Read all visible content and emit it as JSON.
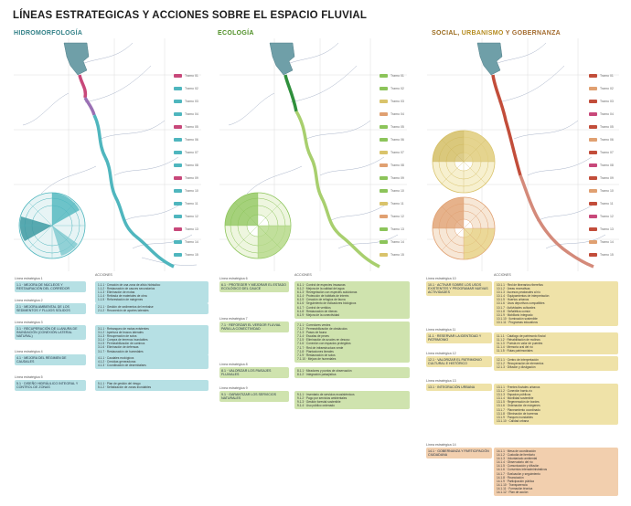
{
  "title": "LÍNEAS ESTRATEGICAS Y ACCIONES SOBRE EL ESPACIO FLUVIAL",
  "sections": {
    "hidro": "HIDROMORFOLOGÍA",
    "eco": "ECOLOGÍA",
    "soc_a": "SOCIAL,",
    "soc_b": "URBANISMO",
    "soc_c": "Y GOBERNANZA"
  },
  "acciones_label": "ACCIONES",
  "colors": {
    "hidro": "#4fb6be",
    "hidro_box": "#b6e0e4",
    "eco": "#8cc45a",
    "eco_box": "#cfe3ae",
    "soc": "#d9c36b",
    "soc_box": "#efe2a8",
    "soc_orange": "#e0a071",
    "soc_orange_box": "#f2cfae",
    "reservoir": "#6f9fa8",
    "pink": "#c8487a",
    "purple": "#9a70b4",
    "red": "#c24d3a",
    "river_thin": "#9aa7bf"
  },
  "tramos": [
    {
      "label": "Tramo 01"
    },
    {
      "label": "Tramo 02"
    },
    {
      "label": "Tramo 03"
    },
    {
      "label": "Tramo 04"
    },
    {
      "label": "Tramo 05"
    },
    {
      "label": "Tramo 06"
    },
    {
      "label": "Tramo 07"
    },
    {
      "label": "Tramo 08"
    },
    {
      "label": "Tramo 09"
    },
    {
      "label": "Tramo 10"
    },
    {
      "label": "Tramo 11"
    },
    {
      "label": "Tramo 12"
    },
    {
      "label": "Tramo 13"
    },
    {
      "label": "Tramo 14"
    },
    {
      "label": "Tramo 15"
    }
  ],
  "hidro_blocks": [
    {
      "head": "Línea estratégica 1",
      "line": "1.1 · MEJORA DE NÚCLEOS Y RESTAURACIÓN DEL CORREDOR",
      "actions": [
        "1.1.1 · Creación de una zona de alivio hidráulico",
        "1.1.2 · Restauración de cauces secundarios",
        "1.1.3 · Eliminación de motas",
        "1.1.4 · Retirada de materiales de obra",
        "1.1.5 · Reforestación de márgenes"
      ]
    },
    {
      "head": "Línea estratégica 2",
      "line": "2.1 · MEJORA AMBIENTAL DE LOS SEDIMENTOS Y FLUJOS SÓLIDOS",
      "actions": [
        "2.1.1 · Gestión de sedimentos del embalse",
        "2.1.2 · Reconexión de aportes laterales"
      ]
    },
    {
      "head": "Línea estratégica 3",
      "line": "3.1 · RECUPERACIÓN DE LLANURA DE INUNDACIÓN (CONEXIÓN LATERAL NATURAL)",
      "actions": [
        "3.1.1 · Retranqueo de motas existentes",
        "3.1.2 · Apertura de brazos laterales",
        "3.1.3 · Recuperación de sotos",
        "3.1.4 · Compra de terrenos inundables",
        "3.1.5 · Permeabilización de caminos",
        "3.1.6 · Eliminación de defensas",
        "3.1.7 · Restauración de humedales"
      ]
    },
    {
      "head": "Línea estratégica 4",
      "line": "4.1 · MEJORA DEL RÉGIMEN DE CAUDALES",
      "actions": [
        "4.1.1 · Caudales ecológicos",
        "4.1.2 · Crecidas generadoras",
        "4.1.3 · Coordinación de desembalses"
      ]
    },
    {
      "head": "Línea estratégica 5",
      "line": "5.1 · DISEÑO HIDRÁULICO INTEGRAL Y CONTROL DE ZONAS",
      "actions": [
        "5.1.1 · Plan de gestión del riesgo",
        "5.1.2 · Señalización de zonas inundables"
      ]
    }
  ],
  "eco_blocks": [
    {
      "head": "Línea estratégica 6",
      "line": "6.1 · PROTEGER Y MEJORAR EL ESTADO ECOLÓGICO DEL CAUCE",
      "actions": [
        "6.1.1 · Control de especies invasoras",
        "6.1.2 · Mejora de la calidad del agua",
        "6.1.3 · Revegetación con especies autóctonas",
        "6.1.4 · Protección de hábitats de interés",
        "6.1.5 · Creación de refugios de fauna",
        "6.1.6 · Seguimiento de indicadores biológicos",
        "6.1.7 · Control de vertidos",
        "6.1.8 · Restauración de riberas",
        "6.1.9 · Mejora de la conectividad"
      ]
    },
    {
      "head": "Línea estratégica 7",
      "line": "7.1 · REFORZAR EL VERDOR FLUVIAL PARA LA CONECTIVIDAD",
      "actions": [
        "7.1.1 · Corredores verdes",
        "7.1.2 · Permeabilización de obstáculos",
        "7.1.3 · Pasos de fauna",
        "7.1.4 · Escalas de peces",
        "7.1.5 · Eliminación de azudes en desuso",
        "7.1.6 · Conexión con espacios protegidos",
        "7.1.7 · Red de infraestructura verde",
        "7.1.8 · Plantaciones lineales",
        "7.1.9 · Restauración de sotos",
        "7.1.10 · Mejora de humedales"
      ]
    },
    {
      "head": "Línea estratégica 8",
      "line": "8.1 · VALORIZAR LOS PAISAJES FLUVIALES",
      "actions": [
        "8.1.1 · Miradores y puntos de observación",
        "8.1.2 · Integración paisajística"
      ]
    },
    {
      "head": "Línea estratégica 9",
      "line": "9.1 · GARANTIZAR LOS SERVICIOS NATURALES",
      "actions": [
        "9.1.1 · Inventario de servicios ecosistémicos",
        "9.1.2 · Pago por servicios ambientales",
        "9.1.3 · Gestión forestal sostenible",
        "9.1.4 · Uso público ordenado"
      ]
    }
  ],
  "soc_blocks": [
    {
      "head": "Línea estratégica 10",
      "line": "10.1 · ACTIVAR SOBRE LOS USOS EXISTENTES Y PROGRAMAR NUEVAS ACTIVIDADES",
      "actions": [
        "10.1.1 · Red de itinerarios ribereños",
        "10.1.2 · Áreas recreativas",
        "10.1.3 · Accesos peatonales al río",
        "10.1.4 · Equipamientos de interpretación",
        "10.1.5 · Huertos urbanos",
        "10.1.6 · Usos deportivos compatibles",
        "10.1.7 · Actividades culturales",
        "10.1.8 · Señalética común",
        "10.1.9 · Mobiliario integrado",
        "10.1.10 · Iluminación sostenible",
        "10.1.11 · Programas educativos"
      ]
    },
    {
      "head": "Línea estratégica 11",
      "line": "11.1 · RESERVAR LA IDENTIDAD Y PATRIMONIO",
      "actions": [
        "11.1.1 · Catálogo de patrimonio fluvial",
        "11.1.2 · Rehabilitación de molinos",
        "11.1.3 · Puesta en valor de puentes",
        "11.1.4 · Memoria oral del río",
        "11.1.5 · Rutas patrimoniales"
      ]
    },
    {
      "head": "Línea estratégica 12",
      "line": "12.1 · VALORIZAR EL PATRIMONIO CULTURAL E HISTÓRICO",
      "actions": [
        "12.1.1 · Centro de interpretación",
        "12.1.2 · Recuperación de elementos",
        "12.1.3 · Difusión y divulgación"
      ]
    },
    {
      "head": "Línea estratégica 13",
      "line": "13.1 · INTEGRACIÓN URBANA",
      "actions": [
        "13.1.1 · Frentes fluviales urbanos",
        "13.1.2 · Conexión barrio-río",
        "13.1.3 · Espacios públicos",
        "13.1.4 · Movilidad sostenible",
        "13.1.5 · Regeneración de bordes",
        "13.1.6 · Ordenación de márgenes",
        "13.1.7 · Planeamiento coordinado",
        "13.1.8 · Eliminación de barreras",
        "13.1.9 · Parques inundables",
        "13.1.10 · Calidad urbana"
      ]
    },
    {
      "head": "Línea estratégica 14",
      "line": "14.1 · GOBERNANZA Y PARTICIPACIÓN CIUDADANA",
      "actions": [
        "14.1.1 · Mesa de coordinación",
        "14.1.2 · Custodia del territorio",
        "14.1.3 · Voluntariado ambiental",
        "14.1.4 · Observatorio del río",
        "14.1.5 · Comunicación y difusión",
        "14.1.6 · Convenios interadministrativos",
        "14.1.7 · Evaluación y seguimiento",
        "14.1.8 · Financiación",
        "14.1.9 · Participación pública",
        "14.1.10 · Transparencia",
        "14.1.11 · Formación técnica",
        "14.1.12 · Plan de acción"
      ]
    }
  ]
}
